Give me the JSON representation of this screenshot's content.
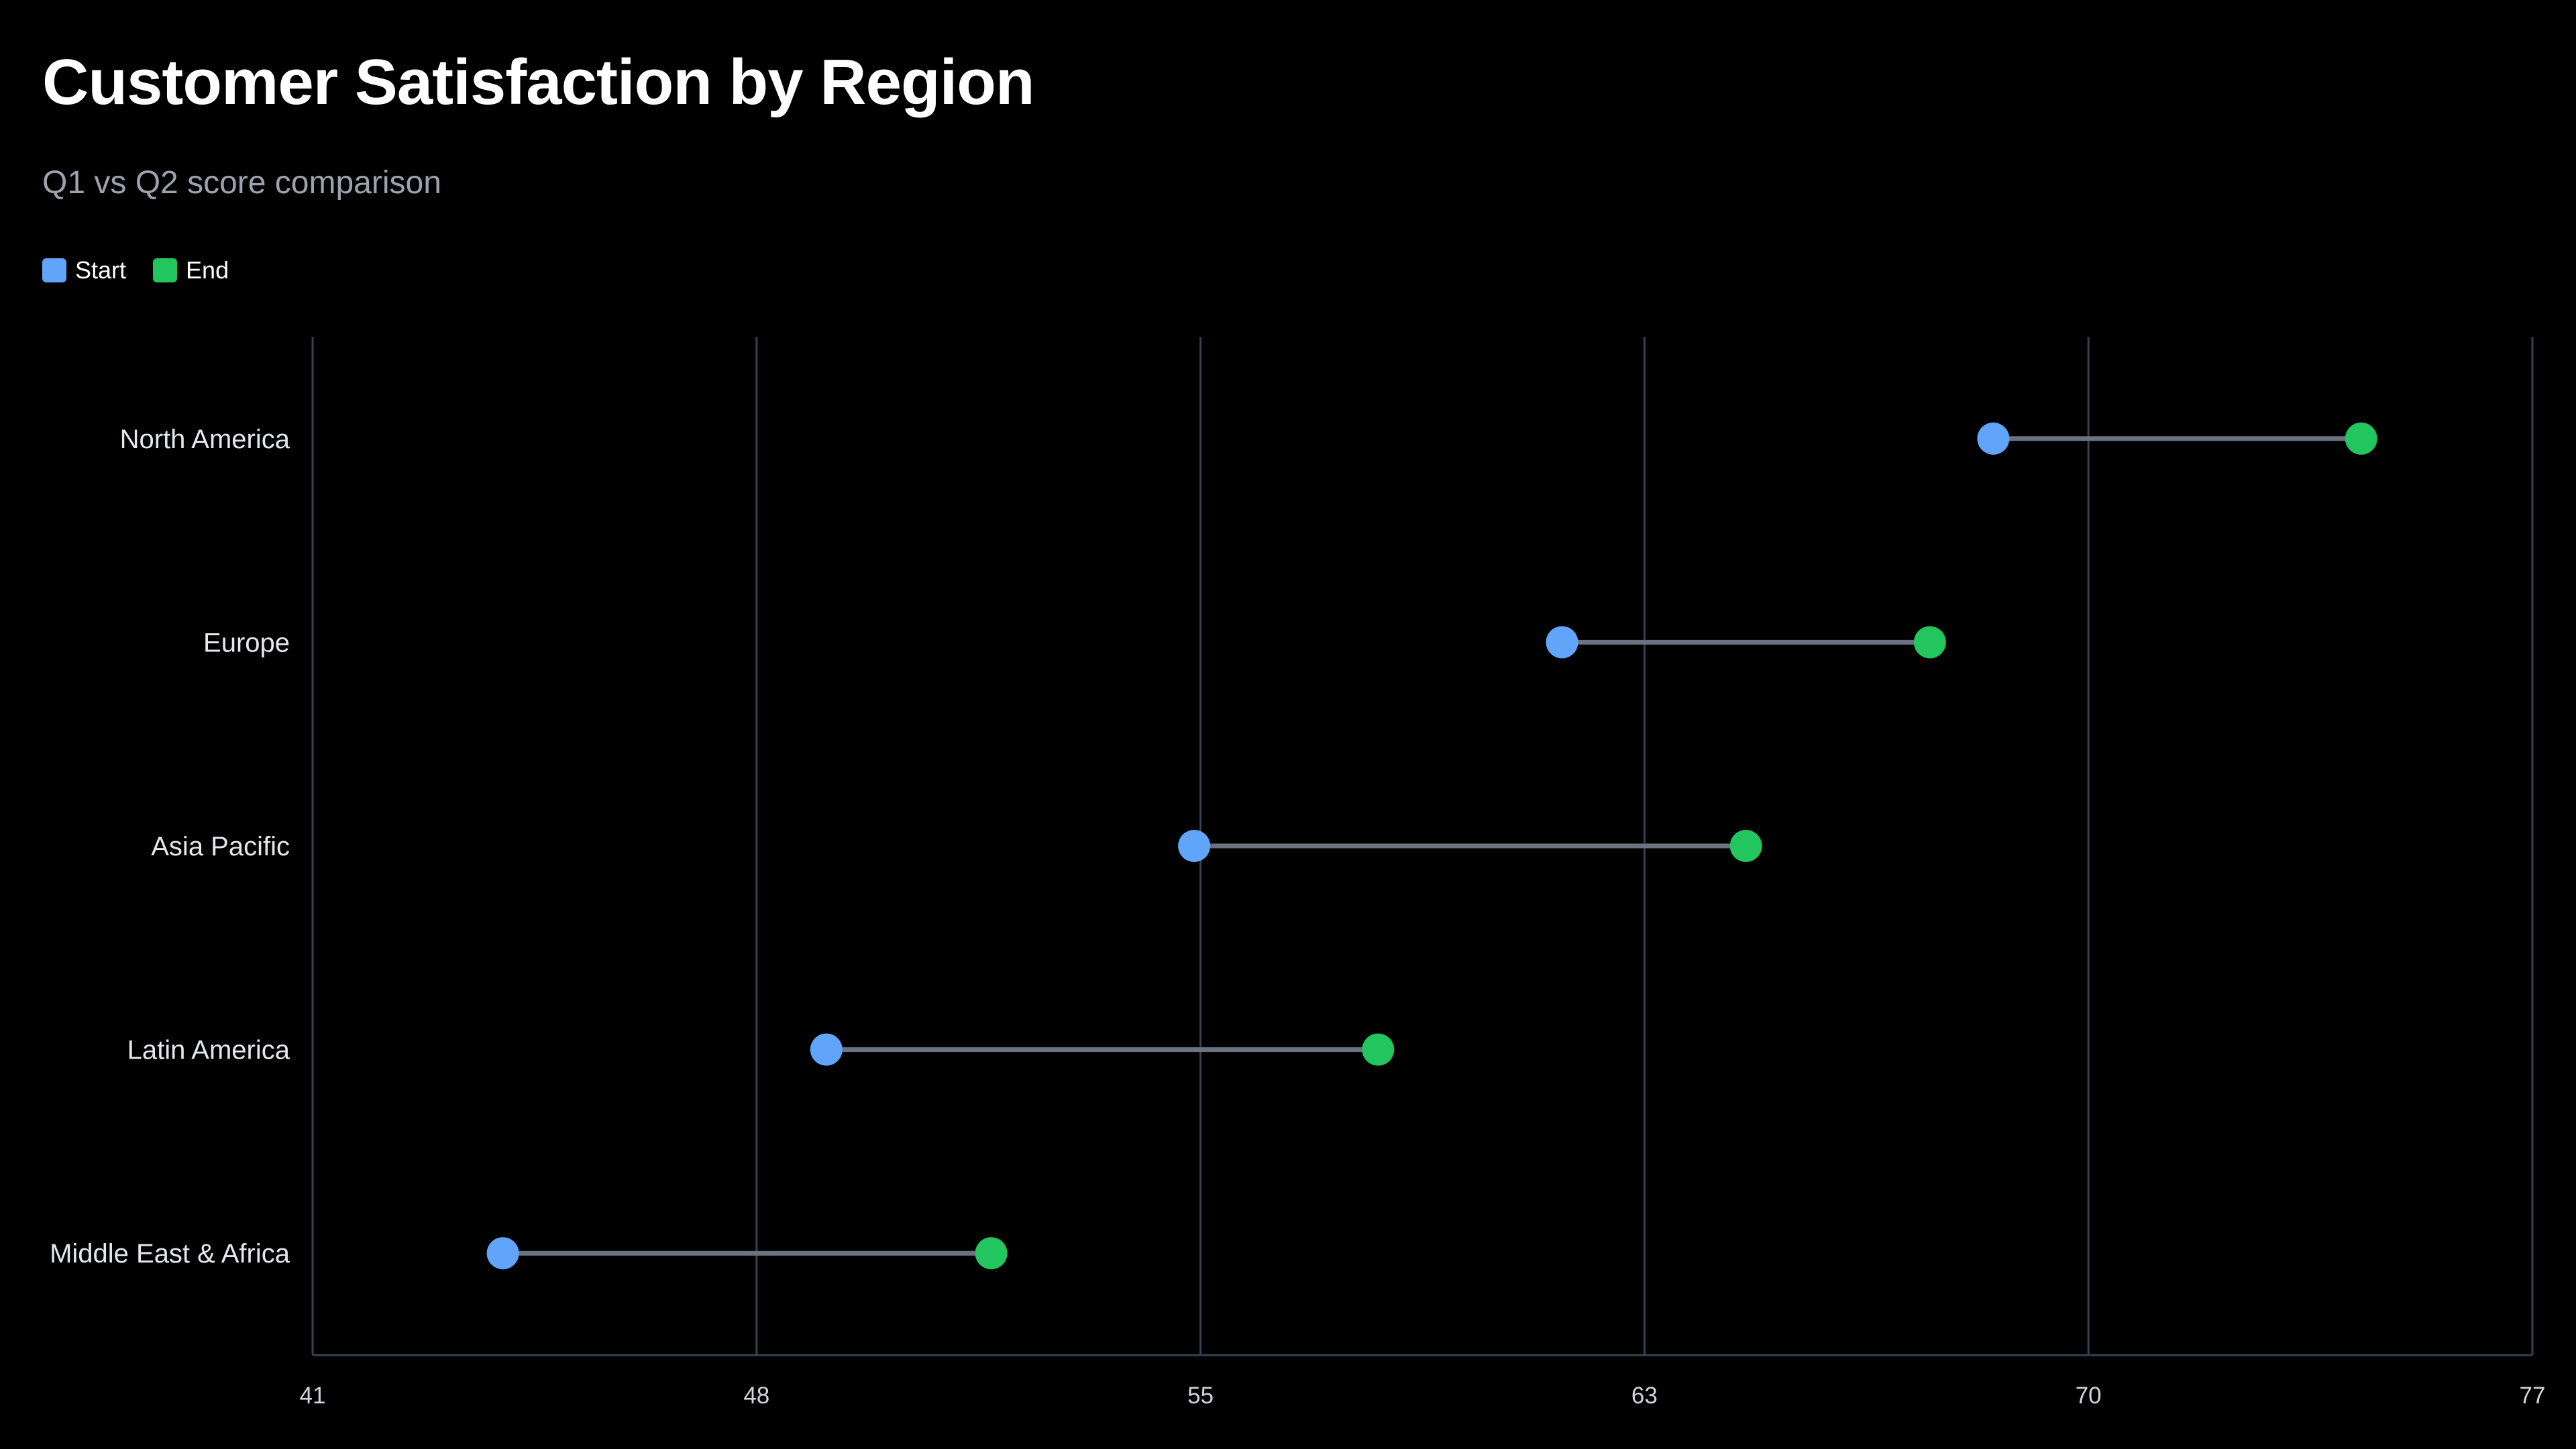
{
  "title": "Customer Satisfaction by Region",
  "subtitle": "Q1 vs Q2 score comparison",
  "legend": {
    "start_label": "Start",
    "end_label": "End"
  },
  "colors": {
    "start": "#60a5fa",
    "end": "#22c55e",
    "connector": "#6b7280",
    "grid": "#374151",
    "tick_text": "#d1d5db",
    "category_text": "#e5e7eb"
  },
  "chart_data": {
    "type": "dumbbell",
    "title": "Customer Satisfaction by Region",
    "subtitle": "Q1 vs Q2 score comparison",
    "categories": [
      "North America",
      "Europe",
      "Asia Pacific",
      "Latin America",
      "Middle East & Africa"
    ],
    "series": [
      {
        "name": "Start",
        "values": [
          67.5,
          60.7,
          54.9,
          49.1,
          44.0
        ]
      },
      {
        "name": "End",
        "values": [
          73.3,
          66.5,
          63.6,
          57.8,
          51.7
        ]
      }
    ],
    "x_ticks": [
      "41",
      "48",
      "55",
      "63",
      "70",
      "77"
    ],
    "xlim": [
      41,
      76
    ],
    "grid": "vertical",
    "legend_position": "top-left"
  }
}
